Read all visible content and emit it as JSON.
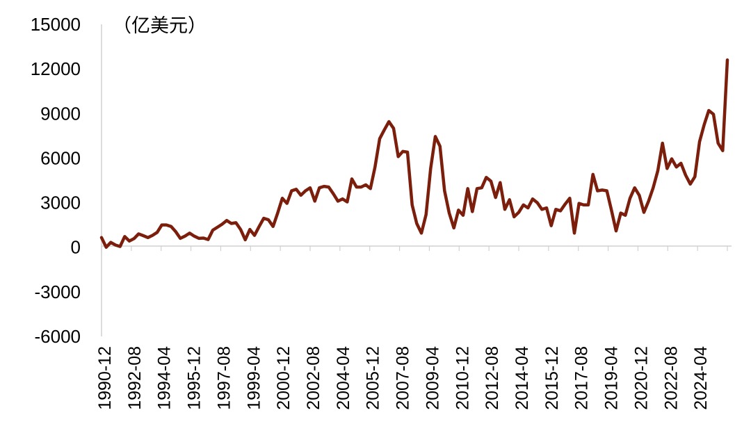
{
  "chart_data": {
    "type": "line",
    "unit_label": "（亿美元）",
    "ylim": [
      -6000,
      15000
    ],
    "y_ticks": [
      15000,
      12000,
      9000,
      6000,
      3000,
      0,
      -3000,
      -6000
    ],
    "x_tick_labels": [
      "1990-12",
      "1992-08",
      "1994-04",
      "1995-12",
      "1997-08",
      "1999-04",
      "2000-12",
      "2002-08",
      "2004-04",
      "2005-12",
      "2007-08",
      "2009-04",
      "2010-12",
      "2012-08",
      "2014-04",
      "2015-12",
      "2017-08",
      "2019-04",
      "2020-12",
      "2022-08",
      "2024-04"
    ],
    "grid": false,
    "legend": "none",
    "line_color": "#7b1e0c",
    "series": [
      {
        "values": [
          650,
          0,
          330,
          150,
          50,
          720,
          420,
          580,
          900,
          780,
          650,
          800,
          1000,
          1500,
          1500,
          1400,
          1050,
          600,
          750,
          950,
          750,
          600,
          620,
          520,
          1150,
          1350,
          1550,
          1800,
          1600,
          1650,
          1200,
          500,
          1200,
          800,
          1400,
          1950,
          1850,
          1400,
          2300,
          3300,
          2950,
          3800,
          3900,
          3500,
          3800,
          4000,
          3100,
          4000,
          4100,
          4050,
          3600,
          3100,
          3250,
          3050,
          4600,
          4050,
          4050,
          4200,
          3950,
          5400,
          7300,
          7900,
          8450,
          8000,
          6100,
          6450,
          6400,
          2850,
          1600,
          950,
          2200,
          5300,
          7450,
          6800,
          3800,
          2300,
          1300,
          2500,
          2150,
          3950,
          2400,
          3950,
          4000,
          4700,
          4450,
          3350,
          4350,
          2550,
          3200,
          2050,
          2350,
          2850,
          2650,
          3250,
          3000,
          2550,
          2650,
          1450,
          2550,
          2450,
          2900,
          3300,
          950,
          2950,
          2850,
          2850,
          4900,
          3800,
          3850,
          3800,
          2500,
          1100,
          2300,
          2150,
          3300,
          4000,
          3500,
          2350,
          3100,
          4000,
          5150,
          7000,
          5300,
          5950,
          5400,
          5650,
          4850,
          4250,
          4750,
          7100,
          8250,
          9200,
          8950,
          7000,
          6500,
          12600
        ]
      }
    ]
  }
}
